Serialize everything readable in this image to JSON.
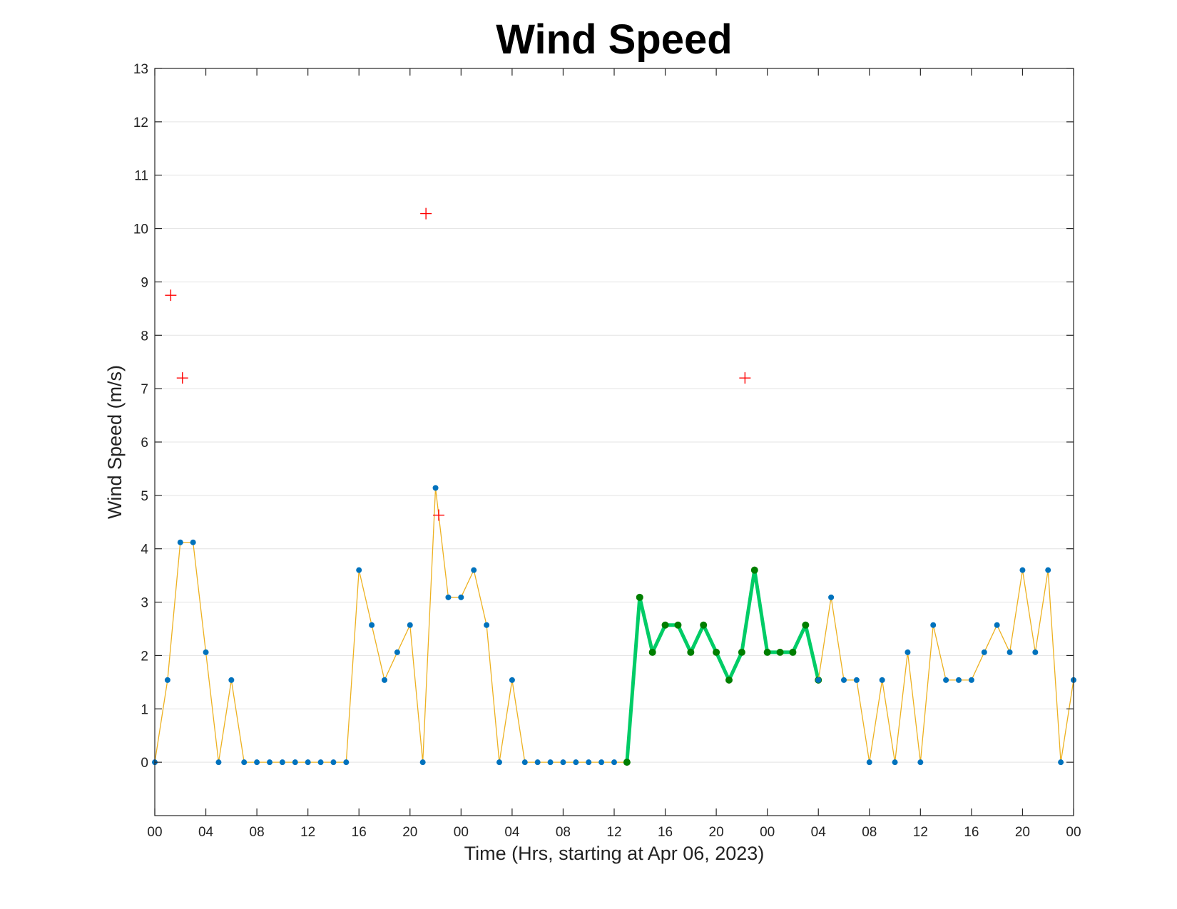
{
  "chart_data": {
    "type": "line",
    "title": "Wind Speed",
    "xlabel": "Time (Hrs, starting at Apr 06, 2023)",
    "ylabel": "Wind Speed (m/s)",
    "ylim": [
      -1,
      13
    ],
    "yticks": [
      0,
      1,
      2,
      3,
      4,
      5,
      6,
      7,
      8,
      9,
      10,
      11,
      12,
      13
    ],
    "xlim": [
      "2023-04-06 00:00",
      "2023-04-09 00:00"
    ],
    "xticks": [
      {
        "t": "2023-04-06 00:00",
        "label": "00"
      },
      {
        "t": "2023-04-06 04:00",
        "label": "04"
      },
      {
        "t": "2023-04-06 08:00",
        "label": "08"
      },
      {
        "t": "2023-04-06 12:00",
        "label": "12"
      },
      {
        "t": "2023-04-06 16:00",
        "label": "16"
      },
      {
        "t": "2023-04-06 20:00",
        "label": "20"
      },
      {
        "t": "2023-04-07 00:00",
        "label": "00"
      },
      {
        "t": "2023-04-07 04:00",
        "label": "04"
      },
      {
        "t": "2023-04-07 08:00",
        "label": "08"
      },
      {
        "t": "2023-04-07 12:00",
        "label": "12"
      },
      {
        "t": "2023-04-07 16:00",
        "label": "16"
      },
      {
        "t": "2023-04-07 20:00",
        "label": "20"
      },
      {
        "t": "2023-04-08 00:00",
        "label": "00"
      },
      {
        "t": "2023-04-08 04:00",
        "label": "04"
      },
      {
        "t": "2023-04-08 08:00",
        "label": "08"
      },
      {
        "t": "2023-04-08 12:00",
        "label": "12"
      },
      {
        "t": "2023-04-08 16:00",
        "label": "16"
      },
      {
        "t": "2023-04-08 20:00",
        "label": "20"
      },
      {
        "t": "2023-04-09 00:00",
        "label": "00"
      }
    ],
    "grid": "y-major",
    "legend": "none",
    "series": [
      {
        "style": "thin-line-with-markers",
        "line_color": "#EDB120",
        "marker_color": "#0072BD",
        "x": [
          "2023-04-06 00:00",
          "2023-04-06 01:00",
          "2023-04-06 02:00",
          "2023-04-06 03:00",
          "2023-04-06 04:00",
          "2023-04-06 05:00",
          "2023-04-06 06:00",
          "2023-04-06 07:00",
          "2023-04-06 08:00",
          "2023-04-06 09:00",
          "2023-04-06 10:00",
          "2023-04-06 11:00",
          "2023-04-06 12:00",
          "2023-04-06 13:00",
          "2023-04-06 14:00",
          "2023-04-06 15:00",
          "2023-04-06 16:00",
          "2023-04-06 17:00",
          "2023-04-06 18:00",
          "2023-04-06 19:00",
          "2023-04-06 20:00",
          "2023-04-06 21:00",
          "2023-04-06 22:00",
          "2023-04-06 23:00",
          "2023-04-07 00:00",
          "2023-04-07 01:00",
          "2023-04-07 02:00",
          "2023-04-07 03:00",
          "2023-04-07 04:00",
          "2023-04-07 05:00",
          "2023-04-07 06:00",
          "2023-04-07 07:00",
          "2023-04-07 08:00",
          "2023-04-07 09:00",
          "2023-04-07 10:00",
          "2023-04-07 11:00",
          "2023-04-07 12:00",
          "2023-04-07 13:00"
        ],
        "y": [
          0,
          1.54,
          4.12,
          4.12,
          2.06,
          0,
          1.54,
          0,
          0,
          0,
          0,
          0,
          0,
          0,
          0,
          0,
          3.6,
          2.57,
          1.54,
          2.06,
          2.57,
          0,
          5.14,
          3.09,
          3.09,
          3.6,
          2.57,
          0,
          1.54,
          0,
          0,
          0,
          0,
          0,
          0,
          0,
          0,
          0
        ]
      },
      {
        "style": "thick-line-with-markers",
        "line_color": "#00CC66",
        "marker_color": "#007F00",
        "x": [
          "2023-04-07 13:00",
          "2023-04-07 14:00",
          "2023-04-07 15:00",
          "2023-04-07 16:00",
          "2023-04-07 17:00",
          "2023-04-07 18:00",
          "2023-04-07 19:00",
          "2023-04-07 20:00",
          "2023-04-07 21:00",
          "2023-04-07 22:00",
          "2023-04-07 23:00",
          "2023-04-08 00:00",
          "2023-04-08 01:00",
          "2023-04-08 02:00",
          "2023-04-08 03:00",
          "2023-04-08 04:00"
        ],
        "y": [
          0,
          3.09,
          2.06,
          2.57,
          2.57,
          2.06,
          2.57,
          2.06,
          1.54,
          2.06,
          3.6,
          2.06,
          2.06,
          2.06,
          2.57,
          1.54
        ]
      },
      {
        "style": "thin-line-with-markers",
        "line_color": "#EDB120",
        "marker_color": "#0072BD",
        "x": [
          "2023-04-08 04:00",
          "2023-04-08 05:00",
          "2023-04-08 06:00",
          "2023-04-08 07:00",
          "2023-04-08 08:00",
          "2023-04-08 09:00",
          "2023-04-08 10:00",
          "2023-04-08 11:00",
          "2023-04-08 12:00",
          "2023-04-08 13:00",
          "2023-04-08 14:00",
          "2023-04-08 15:00",
          "2023-04-08 16:00",
          "2023-04-08 17:00",
          "2023-04-08 18:00",
          "2023-04-08 19:00",
          "2023-04-08 20:00",
          "2023-04-08 21:00",
          "2023-04-08 22:00",
          "2023-04-08 23:00",
          "2023-04-09 00:00"
        ],
        "y": [
          1.54,
          3.09,
          1.54,
          1.54,
          0,
          1.54,
          0,
          2.06,
          0,
          2.57,
          1.54,
          1.54,
          1.54,
          2.06,
          2.57,
          2.06,
          3.6,
          2.06,
          3.6,
          0,
          1.54
        ]
      },
      {
        "style": "plus-markers",
        "marker_color": "#FF0000",
        "x": [
          "2023-04-06 01:15",
          "2023-04-06 02:10",
          "2023-04-06 21:15",
          "2023-04-06 22:15",
          "2023-04-07 22:15"
        ],
        "y": [
          8.75,
          7.2,
          10.28,
          4.63,
          7.2
        ]
      }
    ]
  }
}
